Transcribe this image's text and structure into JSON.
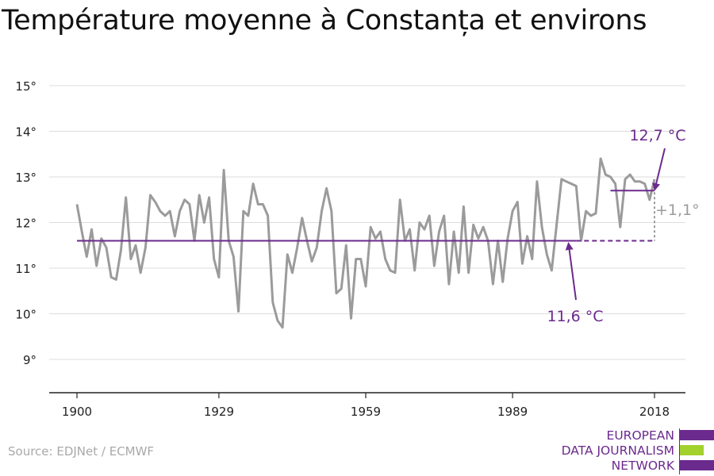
{
  "title": "Température moyenne à Constanța et environs",
  "source": "Source: EDJNet / ECMWF",
  "logo": {
    "lines": [
      "EUROPEAN",
      "DATA JOURNALISM",
      "NETWORK"
    ]
  },
  "colors": {
    "series": "#9b9b9b",
    "accent": "#6b2a8e",
    "logo_green": "#a3d12e",
    "grid": "#dddddd",
    "axis": "#222222"
  },
  "chart_data": {
    "type": "line",
    "x_ticks": [
      1900,
      1929,
      1959,
      1989,
      2018
    ],
    "y_ticks": [
      9,
      10,
      11,
      12,
      13,
      14,
      15
    ],
    "y_tick_labels": [
      "9°",
      "10°",
      "11°",
      "12°",
      "13°",
      "14°",
      "15°"
    ],
    "xlim": [
      1900,
      2018
    ],
    "ylim": [
      8.3,
      15.2
    ],
    "grid": true,
    "series": [
      {
        "x": [
          1900,
          1901,
          1902,
          1903,
          1904,
          1905,
          1906,
          1907,
          1908,
          1909,
          1910,
          1911,
          1912,
          1913,
          1914,
          1915,
          1916,
          1917,
          1918,
          1919,
          1920,
          1921,
          1922,
          1923,
          1924,
          1925,
          1926,
          1927,
          1928,
          1929,
          1930,
          1931,
          1932,
          1933,
          1934,
          1935,
          1936,
          1937,
          1938,
          1939,
          1940,
          1941,
          1942,
          1943,
          1944,
          1945,
          1946,
          1947,
          1948,
          1949,
          1950,
          1951,
          1952,
          1953,
          1954,
          1955,
          1956,
          1957,
          1958,
          1959,
          1960,
          1961,
          1962,
          1963,
          1964,
          1965,
          1966,
          1967,
          1968,
          1969,
          1970,
          1971,
          1972,
          1973,
          1974,
          1975,
          1976,
          1977,
          1978,
          1979,
          1980,
          1981,
          1982,
          1983,
          1984,
          1985,
          1986,
          1987,
          1988,
          1989,
          1990,
          1991,
          1992,
          1993,
          1994,
          1995,
          1996,
          1997,
          1998,
          1999,
          2000,
          2001,
          2002,
          2003,
          2004,
          2005,
          2006,
          2007,
          2008,
          2009,
          2010,
          2011,
          2012,
          2013,
          2014,
          2015,
          2016,
          2017,
          2018
        ],
        "values": [
          12.4,
          11.8,
          11.25,
          11.85,
          11.05,
          11.65,
          11.45,
          10.8,
          10.75,
          11.4,
          12.55,
          11.2,
          11.5,
          10.9,
          11.45,
          12.6,
          12.45,
          12.25,
          12.15,
          12.25,
          11.7,
          12.25,
          12.5,
          12.4,
          11.6,
          12.6,
          12.0,
          12.55,
          11.2,
          10.8,
          13.15,
          11.6,
          11.25,
          10.05,
          12.25,
          12.15,
          12.85,
          12.4,
          12.4,
          12.15,
          10.25,
          9.85,
          9.7,
          11.3,
          10.9,
          11.45,
          12.1,
          11.6,
          11.15,
          11.45,
          12.25,
          12.75,
          12.25,
          10.45,
          10.55,
          11.5,
          9.9,
          11.2,
          11.2,
          10.6,
          11.9,
          11.65,
          11.8,
          11.2,
          10.95,
          10.9,
          12.5,
          11.6,
          11.85,
          10.95,
          12.0,
          11.85,
          12.15,
          11.05,
          11.8,
          12.15,
          10.65,
          11.8,
          10.9,
          12.35,
          10.9,
          11.95,
          11.65,
          11.9,
          11.6,
          10.65,
          11.6,
          10.7,
          11.65,
          12.25,
          12.45,
          11.1,
          11.7,
          11.2,
          12.9,
          11.9,
          11.3,
          10.95,
          11.95,
          12.95,
          12.9,
          12.85,
          12.8,
          11.6,
          12.25,
          12.15,
          12.2,
          13.4,
          13.05,
          13.0,
          12.85,
          11.9,
          12.95,
          13.05,
          12.9,
          12.9,
          12.85,
          12.5,
          12.95
        ]
      }
    ],
    "reference_lines": [
      {
        "label": "11,6 °C",
        "value": 11.6,
        "x_from": 1900,
        "x_to": 2018,
        "dashed_from": 2002
      },
      {
        "label": "12,7 °C",
        "value": 12.7,
        "x_from": 2009,
        "x_to": 2018
      }
    ],
    "annotations": [
      {
        "text": "12,7 °C"
      },
      {
        "text": "11,6 °C"
      },
      {
        "text": "+1,1°"
      }
    ]
  }
}
